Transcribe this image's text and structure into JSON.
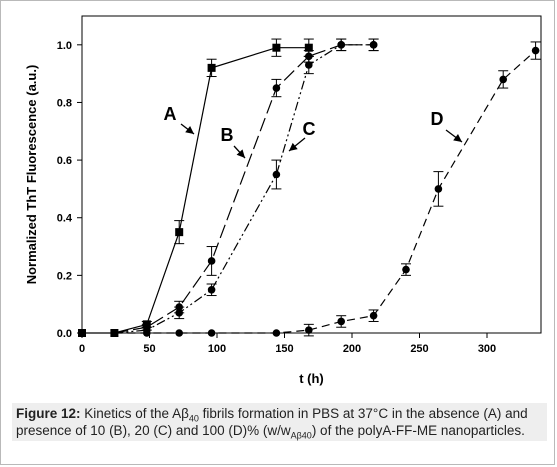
{
  "chart_data": {
    "type": "line",
    "xlabel": "t (h)",
    "ylabel": "Normalized ThT Fluorescence (a.u.)",
    "xlim": [
      0,
      340
    ],
    "ylim": [
      0,
      1.1
    ],
    "xticks": [
      0,
      50,
      100,
      150,
      200,
      250,
      300
    ],
    "yticks": [
      0.0,
      0.2,
      0.4,
      0.6,
      0.8,
      1.0
    ],
    "x_tick_labels": [
      "0",
      "50",
      "100",
      "150",
      "200",
      "250",
      "300"
    ],
    "y_tick_labels": [
      "0.0",
      "0.2",
      "0.4",
      "0.6",
      "0.8",
      "1.0"
    ],
    "grid": false,
    "series": [
      {
        "name": "A",
        "marker": "square",
        "dash": "solid",
        "x": [
          0,
          24,
          48,
          72,
          96,
          144,
          168
        ],
        "y": [
          0.0,
          0.0,
          0.03,
          0.35,
          0.92,
          0.99,
          0.99
        ],
        "err": [
          0,
          0,
          0.01,
          0.04,
          0.03,
          0.03,
          0.03
        ]
      },
      {
        "name": "B",
        "marker": "circle",
        "dash": "long-dash",
        "x": [
          24,
          48,
          72,
          96,
          144,
          168,
          192,
          216
        ],
        "y": [
          0.0,
          0.02,
          0.09,
          0.25,
          0.85,
          0.96,
          1.0,
          1.0
        ],
        "err": [
          0,
          0.01,
          0.02,
          0.05,
          0.03,
          0.02,
          0.02,
          0.02
        ]
      },
      {
        "name": "C",
        "marker": "circle",
        "dash": "dash-dot-dot",
        "x": [
          24,
          48,
          72,
          96,
          144,
          168,
          192,
          216
        ],
        "y": [
          0.0,
          0.01,
          0.07,
          0.15,
          0.55,
          0.93,
          1.0,
          1.0
        ],
        "err": [
          0,
          0.01,
          0.02,
          0.02,
          0.05,
          0.03,
          0.02,
          0.02
        ]
      },
      {
        "name": "D",
        "marker": "circle",
        "dash": "medium-dash",
        "x": [
          24,
          48,
          72,
          96,
          144,
          168,
          192,
          216,
          240,
          264,
          312,
          336
        ],
        "y": [
          0.0,
          0.0,
          0.0,
          0.0,
          0.0,
          0.01,
          0.04,
          0.06,
          0.22,
          0.5,
          0.88,
          0.98
        ],
        "err": [
          0,
          0,
          0,
          0,
          0,
          0.02,
          0.02,
          0.02,
          0.02,
          0.06,
          0.03,
          0.03
        ]
      }
    ],
    "annotations": [
      "A",
      "B",
      "C",
      "D"
    ]
  },
  "caption": {
    "label": "Figure 12:",
    "text_1": " Kinetics of the Aβ",
    "sub_1": "40",
    "text_2": " fibrils formation in PBS at 37°C in the absence (A) and presence of 10 (B), 20 (C) and 100 (D)% (w/w",
    "sub_2": "Aβ40",
    "text_3": ") of the polyA-FF-ME nanoparticles."
  }
}
